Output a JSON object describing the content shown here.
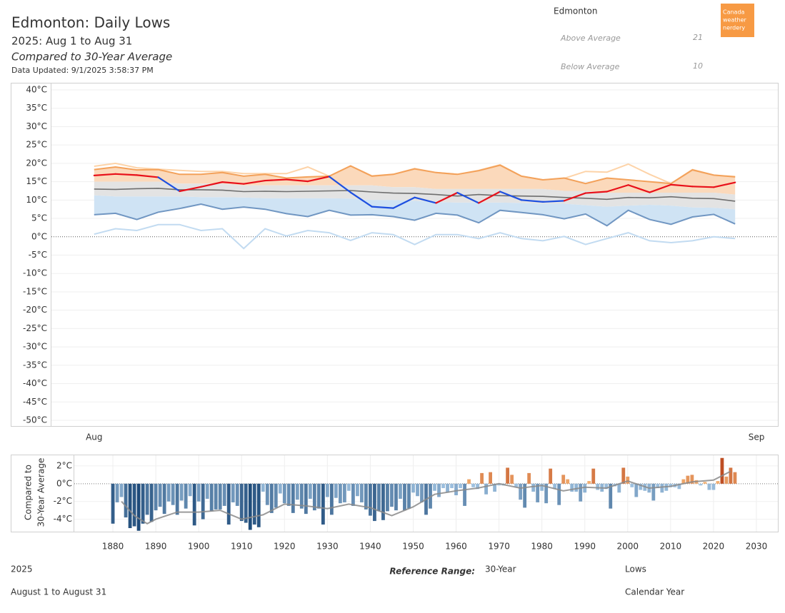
{
  "header": {
    "title": "Edmonton: Daily Lows",
    "subtitle": "2025: Aug 1 to Aug 31",
    "compare": "Compared to 30-Year Average",
    "updated": "Data Updated: 9/1/2025 3:58:37 PM"
  },
  "summary": {
    "city": "Edmonton",
    "rows": [
      {
        "label": "Above Average",
        "value": 21
      },
      {
        "label": "Below Average",
        "value": 10
      }
    ]
  },
  "logo": [
    "Canada",
    "weather",
    "nerdery"
  ],
  "footer": {
    "year": "2025",
    "range_label": "Reference Range:",
    "range": "30-Year",
    "measure": "Lows",
    "period": "August 1 to August 31",
    "calendar": "Calendar Year"
  },
  "chart_data": [
    {
      "type": "line",
      "x": [
        1,
        2,
        3,
        4,
        5,
        6,
        7,
        8,
        9,
        10,
        11,
        12,
        13,
        14,
        15,
        16,
        17,
        18,
        19,
        20,
        21,
        22,
        23,
        24,
        25,
        26,
        27,
        28,
        29,
        30,
        31
      ],
      "xlim": [
        -1,
        33
      ],
      "xticks": [
        {
          "value": 1,
          "label": "Aug"
        },
        {
          "value": 32,
          "label": "Sep"
        }
      ],
      "ylim": [
        -50,
        40
      ],
      "yticks": [
        {
          "value": 40,
          "label": "40°C"
        },
        {
          "value": 35,
          "label": "35°C"
        },
        {
          "value": 30,
          "label": "30°C"
        },
        {
          "value": 25,
          "label": "25°C"
        },
        {
          "value": 20,
          "label": "20°C"
        },
        {
          "value": 15,
          "label": "15°C"
        },
        {
          "value": 10,
          "label": "10°C"
        },
        {
          "value": 5,
          "label": "5°C"
        },
        {
          "value": 0,
          "label": "0°C"
        },
        {
          "value": -5,
          "label": "-5°C"
        },
        {
          "value": -10,
          "label": "-10°C"
        },
        {
          "value": -15,
          "label": "-15°C"
        },
        {
          "value": -20,
          "label": "-20°C"
        },
        {
          "value": -25,
          "label": "-25°C"
        },
        {
          "value": -30,
          "label": "-30°C"
        },
        {
          "value": -35,
          "label": "-35°C"
        },
        {
          "value": -40,
          "label": "-40°C"
        },
        {
          "value": -45,
          "label": "-45°C"
        },
        {
          "value": -50,
          "label": "-50°C"
        }
      ],
      "grid": true,
      "band": {
        "color": "#e3e3e3",
        "upper": [
          15,
          15,
          15,
          15,
          14.5,
          14.5,
          14.5,
          14,
          14,
          14,
          14,
          14,
          14,
          14,
          13.5,
          13.5,
          13,
          13,
          13,
          13,
          13,
          13,
          12.5,
          12.5,
          12,
          12,
          12,
          12,
          12,
          12,
          11.5
        ],
        "lower": [
          11.3,
          11,
          11,
          11,
          11,
          10.8,
          10.8,
          10.7,
          10.5,
          10.5,
          10.5,
          10.5,
          10.4,
          10,
          10,
          9.8,
          9.5,
          9.3,
          9.3,
          9.3,
          9.2,
          9,
          9,
          8.6,
          8.2,
          8.5,
          8.7,
          8.5,
          8,
          7.9,
          7.5
        ]
      },
      "series": [
        {
          "color": "#fdd3a8",
          "values": [
            19.2,
            20,
            18.8,
            18.4,
            18.1,
            17.8,
            17.8,
            17.2,
            17.2,
            17.2,
            19,
            16.5,
            19.3,
            16.6,
            17,
            18.6,
            17.5,
            17,
            18.1,
            19.6,
            16.5,
            15.5,
            15.9,
            17.8,
            17.6,
            19.8,
            17,
            14.5,
            18.3,
            16.8,
            16.4
          ]
        },
        {
          "color": "#f3a15a",
          "fill": "#fbd9bb",
          "values": [
            18.3,
            19,
            18.2,
            18.3,
            17,
            17,
            17.5,
            16.5,
            17,
            16,
            16.3,
            16.5,
            19.3,
            16.5,
            17,
            18.5,
            17.5,
            17,
            18,
            19.5,
            16.5,
            15.5,
            16,
            14.5,
            16,
            15.5,
            15,
            14.5,
            18.2,
            16.8,
            16.3
          ]
        },
        {
          "color": "#7096c2",
          "fill": "#cfe3f4",
          "values": [
            6,
            6.4,
            4.7,
            6.7,
            7.7,
            8.9,
            7.5,
            8.1,
            7.5,
            6.3,
            5.5,
            7.2,
            5.9,
            6,
            5.5,
            4.5,
            6.4,
            5.9,
            3.8,
            7.2,
            6.6,
            6,
            4.9,
            6.2,
            3,
            7.2,
            4.7,
            3.4,
            5.4,
            6.1,
            3.5
          ]
        },
        {
          "color": "#c2dbf1",
          "values": [
            0.7,
            2.2,
            1.7,
            3.3,
            3.3,
            1.7,
            2.2,
            -3.2,
            2.2,
            0.2,
            1.7,
            1.1,
            -1,
            1.1,
            0.6,
            -2.1,
            0.6,
            0.6,
            -0.5,
            1.1,
            -0.5,
            -1.1,
            0.1,
            -2.1,
            -0.5,
            1.1,
            -1.1,
            -1.6,
            -1.1,
            0,
            -0.5
          ]
        }
      ],
      "average": {
        "color": "#6e6e6e",
        "values": [
          13,
          12.9,
          13.1,
          13.2,
          12.8,
          12.8,
          12.7,
          12.3,
          12.4,
          12.3,
          12.4,
          12.5,
          12.6,
          12.2,
          11.9,
          11.8,
          11.5,
          11.1,
          11.5,
          11.2,
          11.1,
          11,
          10.7,
          10.5,
          10.2,
          10.7,
          10.6,
          10.9,
          10.5,
          10.4,
          9.7
        ]
      },
      "actual": {
        "above_color": "#e8101a",
        "below_color": "#1d4fe0",
        "values": [
          16.7,
          17.1,
          16.8,
          16.2,
          12.4,
          13.6,
          14.9,
          14.4,
          15.3,
          15.6,
          15.1,
          16.4,
          12.1,
          8.2,
          7.8,
          10.7,
          9.2,
          12,
          9.2,
          12.3,
          10,
          9.5,
          9.8,
          11.9,
          12.3,
          14.1,
          12.1,
          14.2,
          13.7,
          13.5,
          14.8
        ]
      }
    },
    {
      "type": "bar",
      "ylabel": [
        "Compared to",
        "30-Year Average"
      ],
      "xlim": [
        1871,
        2035
      ],
      "xticks": [
        1880,
        1890,
        1900,
        1910,
        1920,
        1930,
        1940,
        1950,
        1960,
        1970,
        1980,
        1990,
        2000,
        2010,
        2020,
        2030
      ],
      "ylim": [
        -5.4,
        3.2
      ],
      "yticks": [
        {
          "value": 2,
          "label": "2°C"
        },
        {
          "value": 0,
          "label": "0°C"
        },
        {
          "value": -2,
          "label": "-2°C"
        },
        {
          "value": -4,
          "label": "-4°C"
        }
      ],
      "grid": true,
      "colorscale": [
        "#1b4877",
        "#a9cbe8",
        "#f8b878",
        "#b8431a"
      ],
      "x": [
        1880,
        1881,
        1882,
        1883,
        1884,
        1885,
        1886,
        1887,
        1888,
        1889,
        1890,
        1891,
        1892,
        1893,
        1894,
        1895,
        1896,
        1897,
        1898,
        1899,
        1900,
        1901,
        1902,
        1903,
        1904,
        1905,
        1906,
        1907,
        1908,
        1909,
        1910,
        1911,
        1912,
        1913,
        1914,
        1915,
        1916,
        1917,
        1918,
        1919,
        1920,
        1921,
        1922,
        1923,
        1924,
        1925,
        1926,
        1927,
        1928,
        1929,
        1930,
        1931,
        1932,
        1933,
        1934,
        1935,
        1936,
        1937,
        1938,
        1939,
        1940,
        1941,
        1942,
        1943,
        1944,
        1945,
        1946,
        1947,
        1948,
        1949,
        1950,
        1951,
        1952,
        1953,
        1954,
        1955,
        1956,
        1957,
        1958,
        1959,
        1960,
        1961,
        1962,
        1963,
        1964,
        1965,
        1966,
        1967,
        1968,
        1969,
        1970,
        1971,
        1972,
        1973,
        1974,
        1975,
        1976,
        1977,
        1978,
        1979,
        1980,
        1981,
        1982,
        1983,
        1984,
        1985,
        1986,
        1987,
        1988,
        1989,
        1990,
        1991,
        1992,
        1993,
        1994,
        1995,
        1996,
        1997,
        1998,
        1999,
        2000,
        2001,
        2002,
        2003,
        2004,
        2005,
        2006,
        2007,
        2008,
        2009,
        2010,
        2011,
        2012,
        2013,
        2014,
        2015,
        2016,
        2017,
        2018,
        2019,
        2020,
        2021,
        2022,
        2023,
        2024,
        2025
      ],
      "values": [
        -4.5,
        -2.1,
        -1.5,
        -3.8,
        -5.0,
        -4.8,
        -5.3,
        -4.5,
        -3.5,
        -4.3,
        -3.0,
        -2.6,
        -3.4,
        -2.0,
        -2.4,
        -3.5,
        -1.9,
        -2.8,
        -1.4,
        -4.7,
        -2.0,
        -4.0,
        -1.7,
        -3.1,
        -2.9,
        -2.9,
        -2.5,
        -4.6,
        -2.1,
        -2.5,
        -4.2,
        -4.4,
        -5.2,
        -4.6,
        -4.9,
        -0.9,
        -2.4,
        -3.3,
        -2.7,
        -1.1,
        -2.2,
        -2.5,
        -3.3,
        -1.8,
        -2.8,
        -3.4,
        -1.7,
        -3.0,
        -2.8,
        -4.6,
        -1.5,
        -3.5,
        -1.6,
        -2.2,
        -2.1,
        -0.8,
        -2.5,
        -1.4,
        -2.1,
        -2.9,
        -3.6,
        -4.2,
        -3.1,
        -4.1,
        -3.1,
        -2.6,
        -3.0,
        -1.7,
        -3.0,
        -2.8,
        -1.0,
        -1.4,
        -2.1,
        -3.5,
        -2.8,
        -0.8,
        -1.5,
        -0.5,
        -1.0,
        -0.5,
        -1.3,
        -0.5,
        -2.5,
        0.5,
        -0.4,
        -0.6,
        1.2,
        -1.2,
        1.3,
        -0.9,
        -0.2,
        -0.2,
        1.8,
        1.0,
        -0.4,
        -1.8,
        -2.7,
        1.2,
        -0.9,
        -2.1,
        -0.8,
        -2.2,
        1.7,
        -0.6,
        -2.4,
        1.0,
        0.5,
        -0.9,
        -0.9,
        -2.0,
        -1.0,
        0.3,
        1.7,
        -0.7,
        -0.9,
        -0.6,
        -2.8,
        -0.3,
        -1.0,
        1.8,
        0.8,
        -0.4,
        -1.5,
        -0.7,
        -0.8,
        -1.0,
        -1.9,
        -0.5,
        -1.0,
        -0.8,
        -0.4,
        -0.4,
        -0.6,
        0.5,
        0.9,
        1.0,
        0.4,
        -0.2,
        0.2,
        -0.7,
        -0.7,
        0.3,
        2.9,
        0.8,
        1.8,
        1.3
      ],
      "trend": {
        "color": "#8a8a8a",
        "x": [
          1882,
          1885,
          1888,
          1890,
          1895,
          1900,
          1905,
          1910,
          1915,
          1920,
          1925,
          1930,
          1935,
          1940,
          1945,
          1950,
          1955,
          1960,
          1965,
          1970,
          1975,
          1980,
          1985,
          1990,
          1995,
          2000,
          2005,
          2010,
          2015,
          2020,
          2024
        ],
        "values": [
          -2,
          -3.6,
          -4.5,
          -4,
          -3.2,
          -3.2,
          -3,
          -4,
          -3.5,
          -2.3,
          -2.5,
          -2.8,
          -2.3,
          -2.7,
          -3.6,
          -2.6,
          -1.2,
          -0.8,
          -0.5,
          0,
          -0.5,
          -0.2,
          -0.8,
          -0.4,
          -0.5,
          0.3,
          -0.5,
          -0.3,
          0.2,
          0.4,
          1.4
        ]
      }
    }
  ]
}
